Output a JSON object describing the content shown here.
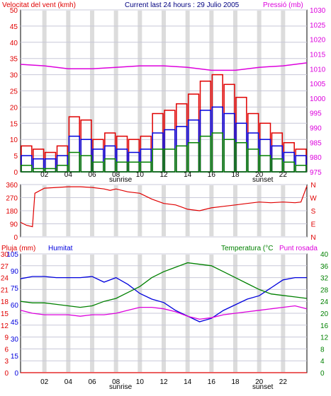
{
  "header": {
    "wind_title": "Velocitat del vent (kmh)",
    "current": "Current last 24 hours : 29 Julio 2005",
    "pressure_title": "Pressió (mb)"
  },
  "colors": {
    "frame": "#000000",
    "plot_bg": "#ffffff",
    "grid": "#c8c8d8",
    "red": "#e00000",
    "blue": "#0000dd",
    "green": "#008000",
    "magenta": "#dd00dd",
    "band": "#dcdcdc"
  },
  "time_axis": {
    "labels": [
      "02",
      "04",
      "06",
      "08",
      "10",
      "12",
      "14",
      "16",
      "18",
      "20",
      "22"
    ],
    "sunrise": "sunrise",
    "sunset": "sunset"
  },
  "direction_axis": {
    "left_ticks": [
      "360",
      "270",
      "180",
      "90",
      "0"
    ],
    "right_labels": [
      "N",
      "W",
      "S",
      "E",
      "N"
    ]
  },
  "lower_header": {
    "rain": "Pluja (mm)",
    "humidity": "Humitat",
    "temperature": "Temperatura (°C",
    "dewpoint": "Punt rosada"
  },
  "chart_data": [
    {
      "type": "bar",
      "title": "Velocitat del vent (kmh)",
      "ylabel_left": "Velocitat del vent (kmh)",
      "ylabel_right": "Pressió (mb)",
      "x_hours": [
        0,
        24
      ],
      "ylim_left": [
        0,
        50
      ],
      "ylim_right": [
        975,
        1030
      ],
      "yticks_left": [
        "0",
        "5",
        "10",
        "15",
        "20",
        "25",
        "30",
        "35",
        "40",
        "45",
        "50"
      ],
      "yticks_right": [
        "975",
        "980",
        "985",
        "990",
        "995",
        "1000",
        "1005",
        "1010",
        "1015",
        "1020",
        "1025",
        "1030"
      ],
      "hours": [
        0.5,
        1.5,
        2.5,
        3.5,
        4.5,
        5.5,
        6.5,
        7.5,
        8.5,
        9.5,
        10.5,
        11.5,
        12.5,
        13.5,
        14.5,
        15.5,
        16.5,
        17.5,
        18.5,
        19.5,
        20.5,
        21.5,
        22.5,
        23.5
      ],
      "series": [
        {
          "name": "gust",
          "color": "red",
          "values": [
            8,
            7,
            6,
            8,
            17,
            16,
            10,
            12,
            11,
            10,
            11,
            18,
            19,
            21,
            24,
            28,
            30,
            27,
            23,
            18,
            15,
            12,
            9,
            7
          ]
        },
        {
          "name": "average",
          "color": "blue",
          "values": [
            5,
            4,
            4,
            5,
            11,
            10,
            7,
            8,
            7,
            6,
            7,
            12,
            13,
            14,
            16,
            19,
            20,
            18,
            15,
            12,
            10,
            8,
            6,
            5
          ]
        },
        {
          "name": "minimum",
          "color": "green",
          "values": [
            2,
            1,
            1,
            2,
            6,
            5,
            3,
            4,
            3,
            3,
            3,
            7,
            7,
            8,
            9,
            11,
            12,
            10,
            9,
            7,
            5,
            4,
            3,
            2
          ]
        }
      ],
      "pressure_series": {
        "name": "Pressió (mb)",
        "hours": [
          0,
          2,
          4,
          6,
          8,
          10,
          12,
          14,
          16,
          18,
          20,
          22,
          24
        ],
        "values": [
          1011.5,
          1011,
          1010,
          1010,
          1010.5,
          1011,
          1011,
          1010.5,
          1009.5,
          1009.5,
          1010.5,
          1011,
          1012
        ]
      }
    },
    {
      "type": "line",
      "ylabel": "wind direction",
      "ylim": [
        0,
        360
      ],
      "hours": [
        0,
        0.5,
        1,
        1.2,
        2,
        3,
        4,
        5,
        6,
        7,
        7.5,
        8,
        9,
        10,
        11,
        12,
        13,
        14,
        15,
        16,
        17,
        18,
        19,
        20,
        21,
        22,
        23,
        23.5,
        24
      ],
      "values": [
        100,
        80,
        70,
        300,
        335,
        340,
        345,
        345,
        340,
        330,
        320,
        330,
        310,
        300,
        260,
        230,
        220,
        190,
        180,
        200,
        210,
        220,
        230,
        240,
        235,
        240,
        235,
        240,
        350
      ]
    },
    {
      "type": "line",
      "ylabel_left": "Pluja (mm)",
      "ylim_left_rain": [
        0,
        30
      ],
      "ylim_left_humidity": [
        0,
        105
      ],
      "ylim_right": [
        0,
        40
      ],
      "yticks_rain": [
        "0",
        "3",
        "6",
        "9",
        "12",
        "15",
        "18",
        "21",
        "24",
        "27",
        "30"
      ],
      "yticks_humidity": [
        "0",
        "15",
        "30",
        "45",
        "60",
        "75",
        "90",
        "105"
      ],
      "yticks_right": [
        "0",
        "4",
        "8",
        "12",
        "16",
        "20",
        "24",
        "28",
        "32",
        "36",
        "40"
      ],
      "hours": [
        0,
        1,
        2,
        3,
        4,
        5,
        6,
        7,
        8,
        9,
        10,
        11,
        12,
        13,
        14,
        15,
        16,
        17,
        18,
        19,
        20,
        21,
        22,
        23,
        24
      ],
      "series": [
        {
          "name": "Humitat",
          "color": "blue",
          "axis": "humidity",
          "values": [
            83,
            85,
            85,
            84,
            84,
            84,
            85,
            80,
            84,
            78,
            70,
            65,
            62,
            55,
            50,
            45,
            48,
            55,
            60,
            65,
            68,
            75,
            82,
            84,
            84
          ]
        },
        {
          "name": "Temperatura (°C",
          "color": "green",
          "axis": "right",
          "values": [
            24,
            23.5,
            23.5,
            23,
            22.5,
            22,
            22.5,
            24,
            25,
            27,
            29,
            32,
            34,
            35.5,
            37,
            36.5,
            36,
            34,
            32,
            30,
            28,
            26.5,
            26,
            25.5,
            25
          ]
        },
        {
          "name": "Punt rosada",
          "color": "magenta",
          "axis": "right",
          "values": [
            21,
            20,
            19.5,
            19.5,
            19.5,
            19,
            19.5,
            19.5,
            20,
            21,
            22,
            22,
            21.5,
            20.5,
            19,
            18,
            18.5,
            19.5,
            20,
            20.5,
            21,
            21.5,
            22,
            22.5,
            21.5
          ]
        },
        {
          "name": "Pluja (mm)",
          "color": "red",
          "axis": "rain",
          "values": [
            0,
            0,
            0,
            0,
            0,
            0,
            0,
            0,
            0,
            0,
            0,
            0,
            0,
            0,
            0,
            0,
            0,
            0,
            0,
            0,
            0,
            0,
            0,
            0,
            0
          ]
        }
      ]
    }
  ]
}
